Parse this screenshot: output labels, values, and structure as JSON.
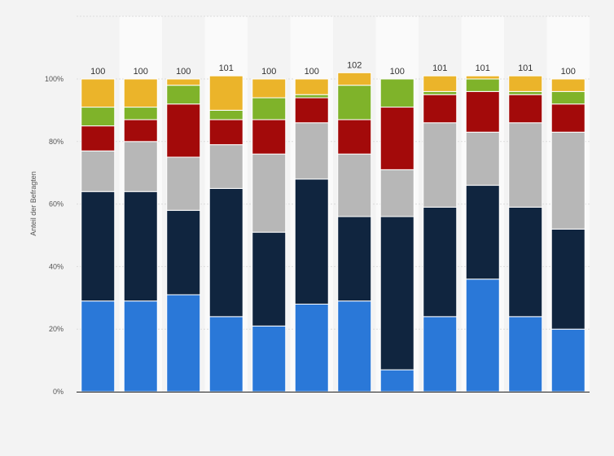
{
  "chart_data": {
    "type": "bar",
    "stacked": true,
    "ylabel": "Anteil der Befragten",
    "ylim": [
      0,
      100
    ],
    "yticks": [
      0,
      20,
      40,
      60,
      80,
      100
    ],
    "ytick_labels": [
      "0%",
      "20%",
      "40%",
      "60%",
      "80%",
      "100%"
    ],
    "grid": true,
    "legend": "none",
    "totals": [
      "100",
      "100",
      "100",
      "101",
      "100",
      "100",
      "102",
      "100",
      "101",
      "101",
      "101",
      "100"
    ],
    "series": [
      {
        "color": "#2a78d8",
        "values": [
          29,
          29,
          31,
          24,
          21,
          28,
          29,
          7,
          24,
          36,
          24,
          20
        ]
      },
      {
        "color": "#10253f",
        "values": [
          35,
          35,
          27,
          41,
          30,
          40,
          27,
          49,
          35,
          30,
          35,
          32
        ]
      },
      {
        "color": "#b7b7b7",
        "values": [
          13,
          16,
          17,
          14,
          25,
          18,
          20,
          15,
          27,
          17,
          27,
          31
        ]
      },
      {
        "color": "#a30a0a",
        "values": [
          8,
          7,
          17,
          8,
          11,
          8,
          11,
          20,
          9,
          13,
          9,
          9
        ]
      },
      {
        "color": "#7fb32a",
        "values": [
          6,
          4,
          6,
          3,
          7,
          1,
          11,
          9,
          1,
          4,
          1,
          4
        ]
      },
      {
        "color": "#ebb42a",
        "values": [
          9,
          9,
          2,
          11,
          6,
          5,
          4,
          0,
          5,
          1,
          5,
          4
        ]
      }
    ]
  }
}
